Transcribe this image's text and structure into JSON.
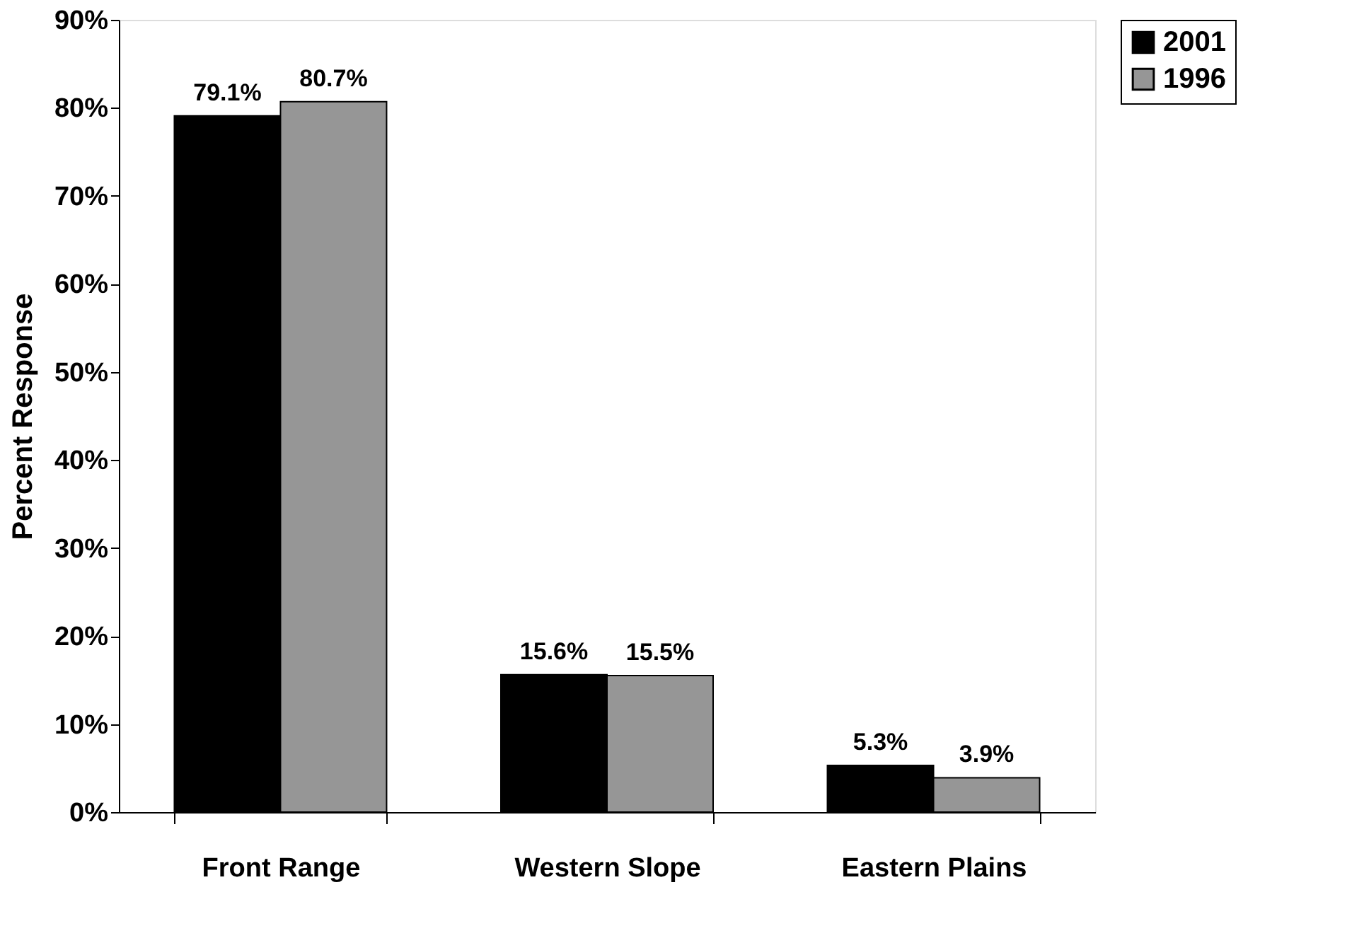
{
  "chart_data": {
    "type": "bar",
    "xlabel": null,
    "ylabel": "Percent Response",
    "categories": [
      "Front Range",
      "Western Slope",
      "Eastern Plains"
    ],
    "series": [
      {
        "name": "2001",
        "color": "#000000",
        "values": [
          79.1,
          15.6,
          5.3
        ],
        "value_labels": [
          "79.1%",
          "15.6%",
          "5.3%"
        ]
      },
      {
        "name": "1996",
        "color": "#969696",
        "values": [
          80.7,
          15.5,
          3.9
        ],
        "value_labels": [
          "80.7%",
          "15.5%",
          "3.9%"
        ]
      }
    ],
    "ylim": [
      0,
      90
    ],
    "yticks": [
      {
        "value": 0,
        "label": "0%"
      },
      {
        "value": 10,
        "label": "10%"
      },
      {
        "value": 20,
        "label": "20%"
      },
      {
        "value": 30,
        "label": "30%"
      },
      {
        "value": 40,
        "label": "40%"
      },
      {
        "value": 50,
        "label": "50%"
      },
      {
        "value": 60,
        "label": "60%"
      },
      {
        "value": 70,
        "label": "70%"
      },
      {
        "value": 80,
        "label": "80%"
      },
      {
        "value": 90,
        "label": "90%"
      }
    ],
    "grid": false,
    "legend": "right"
  }
}
